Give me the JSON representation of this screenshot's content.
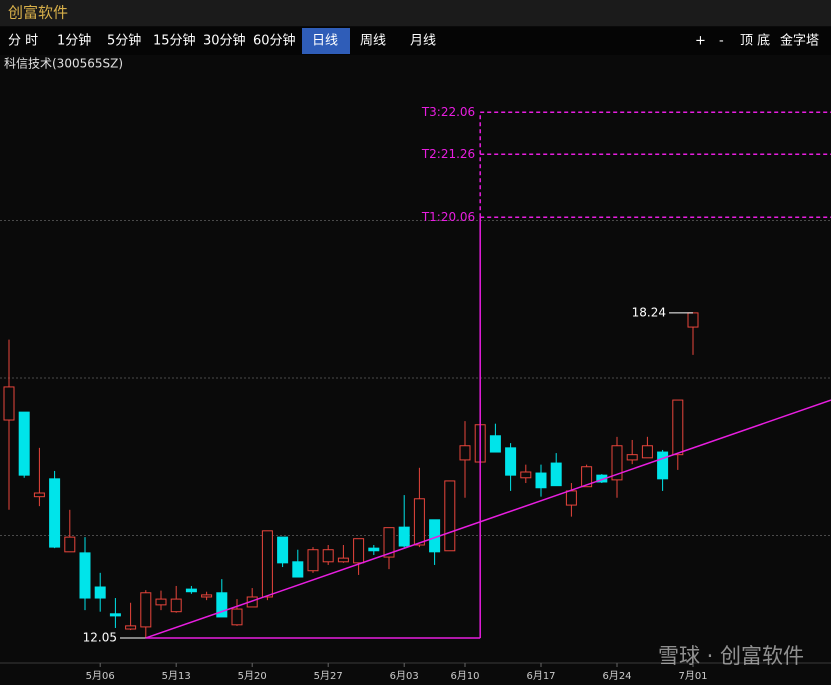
{
  "app_title": "创富软件",
  "toolbar": {
    "periods": [
      "分 时",
      "1分钟",
      "5分钟",
      "15分钟",
      "30分钟",
      "60分钟",
      "日线",
      "周线",
      "月线"
    ],
    "active": "日线",
    "tools": [
      "+",
      "-",
      "顶 底",
      "金字塔"
    ]
  },
  "chart_data": {
    "type": "candlestick",
    "title": "科信技术(300565SZ)",
    "categories": [
      null,
      null,
      null,
      null,
      null,
      null,
      "5月06",
      null,
      null,
      null,
      null,
      "5月13",
      null,
      null,
      null,
      null,
      "5月20",
      null,
      null,
      null,
      null,
      "5月27",
      null,
      null,
      null,
      null,
      "6月03",
      null,
      null,
      null,
      "6月10",
      null,
      null,
      null,
      null,
      "6月17",
      null,
      null,
      null,
      null,
      "6月24",
      null,
      null,
      null,
      null,
      "7月01"
    ],
    "open": [
      16.2,
      16.35,
      14.74,
      15.08,
      13.69,
      13.67,
      13.02,
      12.51,
      12.22,
      12.26,
      12.68,
      12.55,
      12.98,
      12.83,
      12.91,
      12.3,
      12.64,
      12.83,
      13.97,
      13.5,
      13.33,
      13.5,
      13.5,
      13.48,
      13.76,
      13.59,
      14.16,
      13.82,
      14.3,
      13.71,
      15.44,
      15.4,
      15.9,
      15.67,
      15.1,
      15.19,
      15.38,
      14.58,
      14.93,
      15.15,
      15.06,
      15.44,
      15.48,
      15.59,
      15.54,
      17.97
    ],
    "high": [
      17.73,
      16.35,
      15.67,
      15.23,
      14.49,
      13.97,
      13.29,
      12.81,
      12.72,
      12.96,
      12.95,
      13.04,
      13.04,
      12.93,
      13.17,
      12.79,
      13.0,
      14.09,
      13.97,
      13.73,
      13.78,
      13.82,
      13.82,
      13.94,
      13.82,
      14.15,
      14.77,
      15.29,
      14.3,
      15.04,
      16.18,
      16.62,
      16.13,
      15.76,
      15.35,
      15.35,
      15.57,
      15.0,
      15.35,
      15.17,
      15.88,
      15.82,
      15.88,
      15.63,
      16.58,
      18.24
    ],
    "low": [
      14.49,
      15.1,
      14.56,
      13.76,
      13.69,
      12.58,
      12.55,
      12.24,
      12.2,
      12.05,
      12.58,
      12.53,
      12.89,
      12.77,
      12.45,
      12.28,
      12.64,
      12.77,
      13.4,
      13.21,
      13.29,
      13.44,
      13.48,
      13.25,
      13.63,
      13.36,
      13.76,
      13.78,
      13.44,
      13.71,
      14.72,
      15.4,
      15.59,
      14.85,
      15.0,
      14.74,
      14.95,
      14.36,
      14.93,
      15.0,
      14.72,
      15.36,
      15.48,
      14.85,
      15.25,
      17.44
    ],
    "close": [
      16.83,
      15.15,
      14.81,
      13.78,
      13.97,
      12.81,
      12.81,
      12.47,
      12.28,
      12.91,
      12.79,
      12.79,
      12.93,
      12.87,
      12.45,
      12.6,
      12.83,
      14.09,
      13.48,
      13.21,
      13.73,
      13.73,
      13.57,
      13.94,
      13.71,
      14.15,
      13.8,
      14.7,
      13.69,
      15.04,
      15.71,
      16.11,
      15.59,
      15.15,
      15.21,
      14.91,
      14.95,
      14.85,
      15.31,
      15.02,
      15.71,
      15.54,
      15.71,
      15.08,
      16.58,
      18.24
    ],
    "up_color": "#e8453c",
    "down_color": "#00e4ea",
    "line_color": "#e81ee0",
    "ylim": [
      11.63,
      22.77
    ],
    "yticks": [
      14,
      17,
      20
    ],
    "grid": true,
    "low_label": 12.05,
    "high_label": 18.24,
    "trend_line": [
      12.05,
      16.58
    ],
    "targets": [
      {
        "value": 20.06,
        "label": "T1:20.06"
      },
      {
        "value": 21.26,
        "label": "T2:21.26"
      },
      {
        "value": 22.06,
        "label": "T3:22.06"
      }
    ]
  },
  "watermark": "雪球 · 创富软件"
}
